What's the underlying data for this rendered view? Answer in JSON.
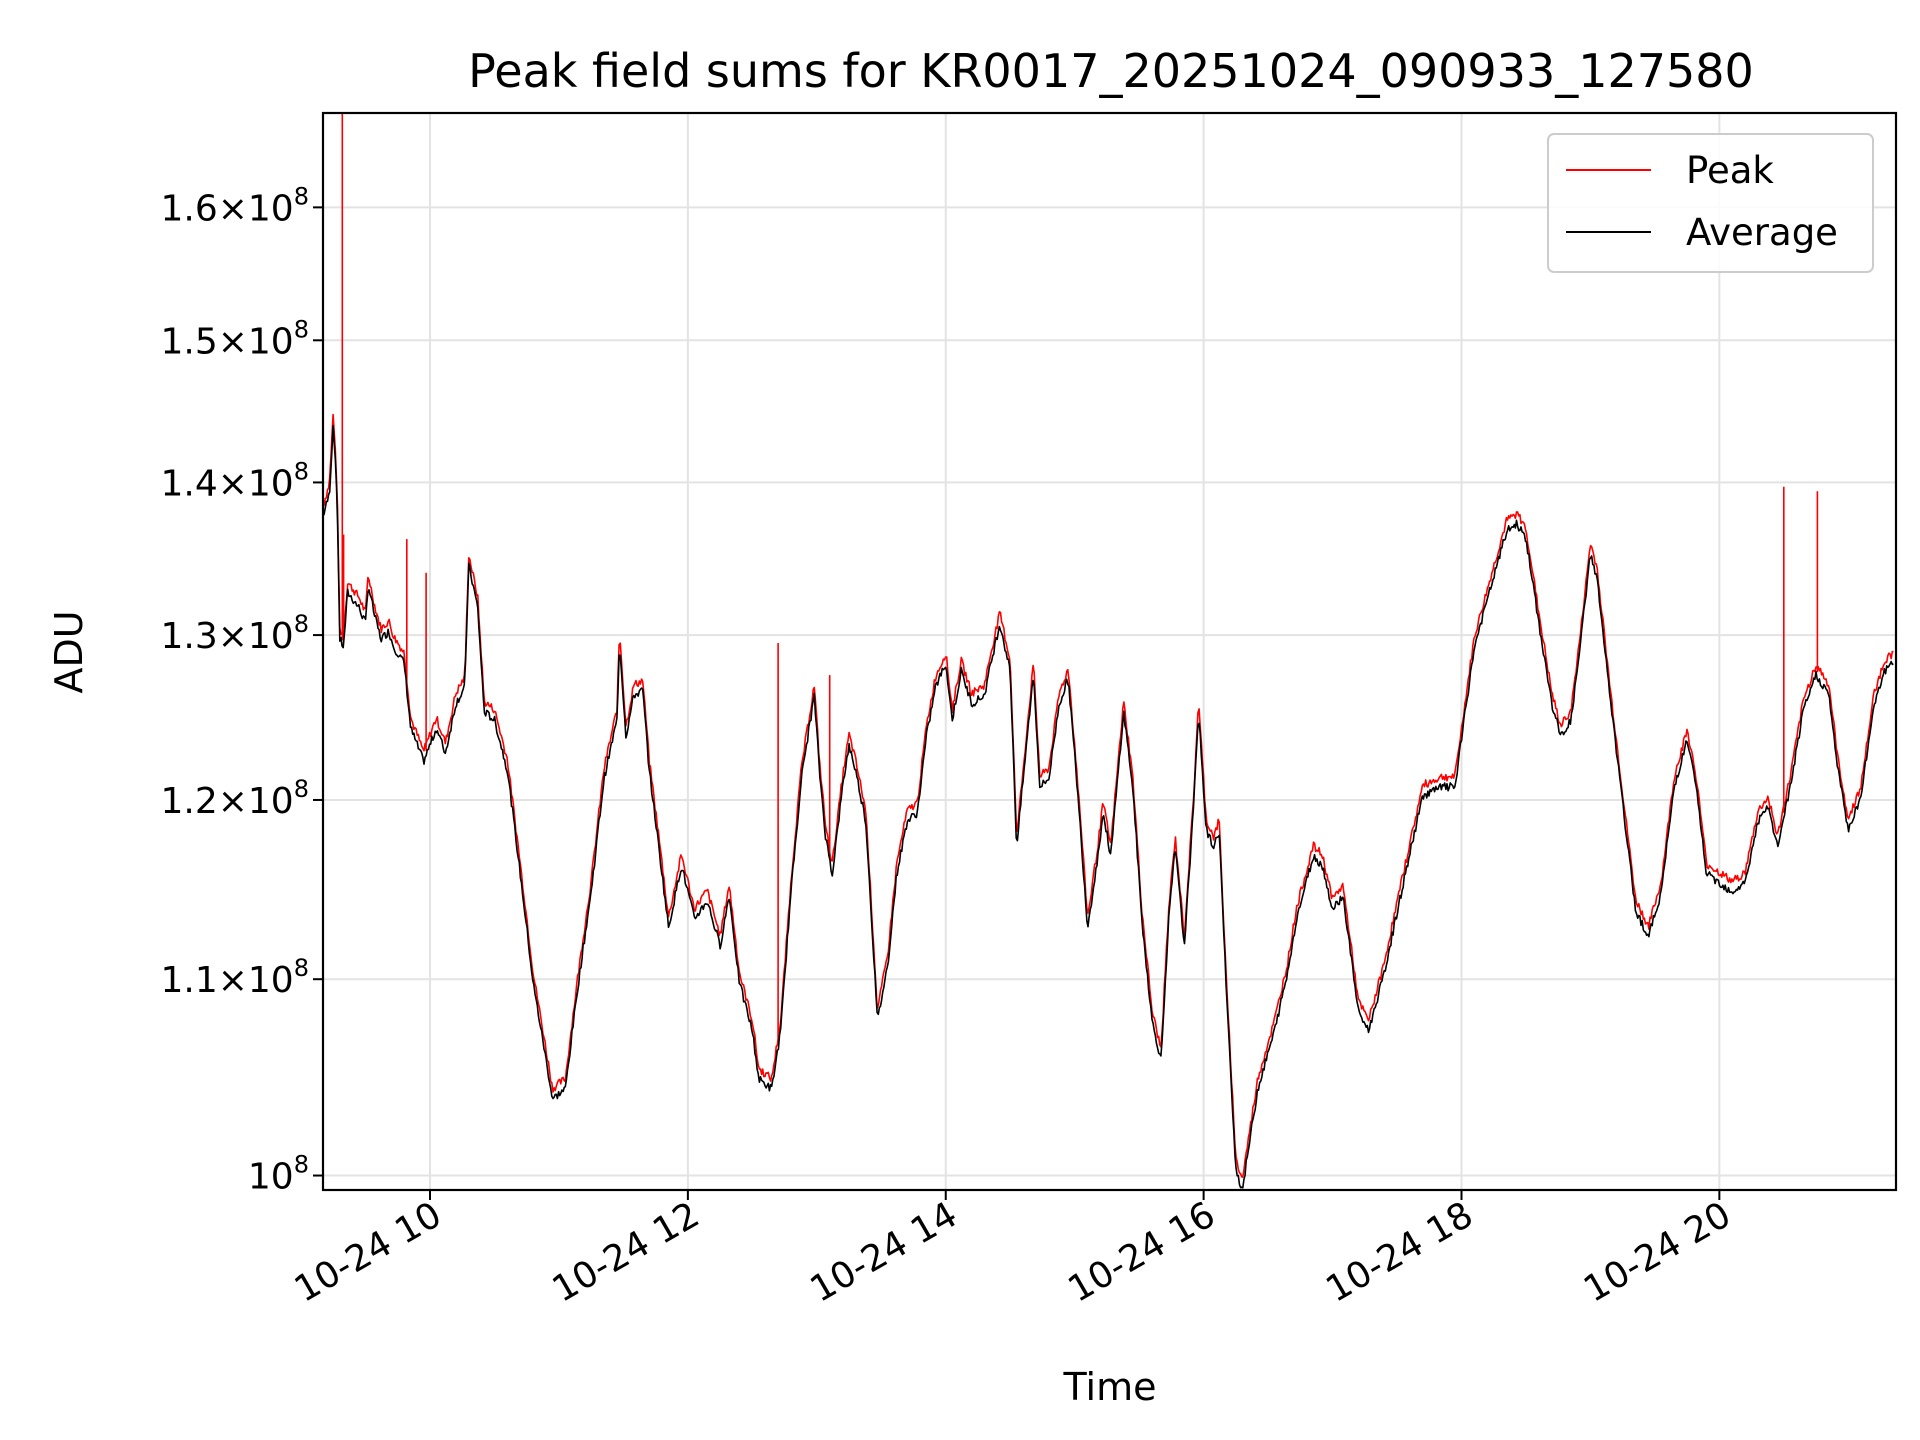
{
  "chart_data": {
    "type": "line",
    "title": "Peak field sums for KR0017_20251024_090933_127580",
    "xlabel": "Time",
    "ylabel": "ADU",
    "yscale": "log",
    "grid": true,
    "legend_position": "top-right",
    "xlim": [
      9.17,
      21.37
    ],
    "ylim": [
      99300000,
      167500000
    ],
    "x_ticks": [
      {
        "value": 10,
        "label": "10-24 10"
      },
      {
        "value": 12,
        "label": "10-24 12"
      },
      {
        "value": 14,
        "label": "10-24 14"
      },
      {
        "value": 16,
        "label": "10-24 16"
      },
      {
        "value": 18,
        "label": "10-24 18"
      },
      {
        "value": 20,
        "label": "10-24 20"
      }
    ],
    "y_ticks": [
      {
        "value": 100000000,
        "mantissa": "",
        "exponent": "8"
      },
      {
        "value": 110000000,
        "mantissa": "1.1",
        "exponent": "8"
      },
      {
        "value": 120000000,
        "mantissa": "1.2",
        "exponent": "8"
      },
      {
        "value": 130000000,
        "mantissa": "1.3",
        "exponent": "8"
      },
      {
        "value": 140000000,
        "mantissa": "1.4",
        "exponent": "8"
      },
      {
        "value": 150000000,
        "mantissa": "1.5",
        "exponent": "8"
      },
      {
        "value": 160000000,
        "mantissa": "1.6",
        "exponent": "8"
      }
    ],
    "x_unit_note": "hours of day on 2025-10-24",
    "series": [
      {
        "name": "Peak",
        "color": "#ff0000",
        "spikes": [
          [
            9.32,
            167500000
          ],
          [
            9.33,
            136500000
          ],
          [
            9.82,
            136200000
          ],
          [
            9.97,
            134000000
          ],
          [
            12.7,
            129500000
          ],
          [
            13.1,
            127500000
          ],
          [
            20.5,
            139700000
          ],
          [
            20.76,
            139400000
          ]
        ],
        "points": [
          [
            9.17,
            138000000
          ],
          [
            9.22,
            139500000
          ],
          [
            9.25,
            144500000
          ],
          [
            9.28,
            139000000
          ],
          [
            9.3,
            130000000
          ],
          [
            9.33,
            129500000
          ],
          [
            9.36,
            133000000
          ],
          [
            9.45,
            132000000
          ],
          [
            9.5,
            131000000
          ],
          [
            9.52,
            133500000
          ],
          [
            9.57,
            131500000
          ],
          [
            9.62,
            130000000
          ],
          [
            9.68,
            130500000
          ],
          [
            9.72,
            129500000
          ],
          [
            9.8,
            128500000
          ],
          [
            9.85,
            124500000
          ],
          [
            9.95,
            122500000
          ],
          [
            10.05,
            124500000
          ],
          [
            10.12,
            123000000
          ],
          [
            10.2,
            126000000
          ],
          [
            10.27,
            127000000
          ],
          [
            10.3,
            134800000
          ],
          [
            10.37,
            132000000
          ],
          [
            10.42,
            125500000
          ],
          [
            10.5,
            125000000
          ],
          [
            10.6,
            122000000
          ],
          [
            10.7,
            116000000
          ],
          [
            10.8,
            110000000
          ],
          [
            10.95,
            104000000
          ],
          [
            11.05,
            104500000
          ],
          [
            11.15,
            110000000
          ],
          [
            11.25,
            115000000
          ],
          [
            11.35,
            121500000
          ],
          [
            11.45,
            125000000
          ],
          [
            11.47,
            129800000
          ],
          [
            11.52,
            124000000
          ],
          [
            11.58,
            126500000
          ],
          [
            11.65,
            126800000
          ],
          [
            11.7,
            122000000
          ],
          [
            11.8,
            116000000
          ],
          [
            11.85,
            113000000
          ],
          [
            11.95,
            116500000
          ],
          [
            12.05,
            113500000
          ],
          [
            12.15,
            114500000
          ],
          [
            12.25,
            112000000
          ],
          [
            12.32,
            114800000
          ],
          [
            12.4,
            110000000
          ],
          [
            12.5,
            107500000
          ],
          [
            12.55,
            105000000
          ],
          [
            12.65,
            104500000
          ],
          [
            12.72,
            107500000
          ],
          [
            12.8,
            115000000
          ],
          [
            12.88,
            121500000
          ],
          [
            12.98,
            126500000
          ],
          [
            13.02,
            122000000
          ],
          [
            13.07,
            118000000
          ],
          [
            13.12,
            116000000
          ],
          [
            13.2,
            121000000
          ],
          [
            13.25,
            123500000
          ],
          [
            13.3,
            122000000
          ],
          [
            13.38,
            119000000
          ],
          [
            13.47,
            108000000
          ],
          [
            13.55,
            111000000
          ],
          [
            13.62,
            116000000
          ],
          [
            13.7,
            119000000
          ],
          [
            13.78,
            119500000
          ],
          [
            13.85,
            124000000
          ],
          [
            13.92,
            127000000
          ],
          [
            14.0,
            128500000
          ],
          [
            14.05,
            125000000
          ],
          [
            14.12,
            128000000
          ],
          [
            14.2,
            126000000
          ],
          [
            14.3,
            126500000
          ],
          [
            14.35,
            128500000
          ],
          [
            14.42,
            131000000
          ],
          [
            14.5,
            128000000
          ],
          [
            14.55,
            117500000
          ],
          [
            14.62,
            123000000
          ],
          [
            14.68,
            127800000
          ],
          [
            14.73,
            121000000
          ],
          [
            14.8,
            121500000
          ],
          [
            14.88,
            126000000
          ],
          [
            14.95,
            127500000
          ],
          [
            15.02,
            121000000
          ],
          [
            15.1,
            113000000
          ],
          [
            15.18,
            117000000
          ],
          [
            15.22,
            119500000
          ],
          [
            15.28,
            117000000
          ],
          [
            15.38,
            125500000
          ],
          [
            15.45,
            121000000
          ],
          [
            15.52,
            113500000
          ],
          [
            15.6,
            108000000
          ],
          [
            15.67,
            106000000
          ],
          [
            15.73,
            113500000
          ],
          [
            15.78,
            117500000
          ],
          [
            15.85,
            112000000
          ],
          [
            15.92,
            119500000
          ],
          [
            15.96,
            125500000
          ],
          [
            16.02,
            118500000
          ],
          [
            16.08,
            117500000
          ],
          [
            16.12,
            118500000
          ],
          [
            16.18,
            109000000
          ],
          [
            16.25,
            100500000
          ],
          [
            16.3,
            99500000
          ],
          [
            16.42,
            104500000
          ],
          [
            16.55,
            107500000
          ],
          [
            16.65,
            110500000
          ],
          [
            16.72,
            113500000
          ],
          [
            16.85,
            117000000
          ],
          [
            16.92,
            116500000
          ],
          [
            17.0,
            114000000
          ],
          [
            17.08,
            114800000
          ],
          [
            17.2,
            108500000
          ],
          [
            17.28,
            107500000
          ],
          [
            17.4,
            110500000
          ],
          [
            17.55,
            115500000
          ],
          [
            17.7,
            120500000
          ],
          [
            17.85,
            121000000
          ],
          [
            17.95,
            121000000
          ],
          [
            18.1,
            129500000
          ],
          [
            18.25,
            134000000
          ],
          [
            18.35,
            137000000
          ],
          [
            18.43,
            137500000
          ],
          [
            18.5,
            136500000
          ],
          [
            18.6,
            131000000
          ],
          [
            18.7,
            126000000
          ],
          [
            18.77,
            124000000
          ],
          [
            18.85,
            125000000
          ],
          [
            18.92,
            129500000
          ],
          [
            19.0,
            135500000
          ],
          [
            19.05,
            134000000
          ],
          [
            19.15,
            126500000
          ],
          [
            19.25,
            120000000
          ],
          [
            19.35,
            114000000
          ],
          [
            19.45,
            112500000
          ],
          [
            19.55,
            115000000
          ],
          [
            19.65,
            121000000
          ],
          [
            19.75,
            123800000
          ],
          [
            19.82,
            121000000
          ],
          [
            19.9,
            116000000
          ],
          [
            20.0,
            115500000
          ],
          [
            20.1,
            115000000
          ],
          [
            20.2,
            115500000
          ],
          [
            20.3,
            119000000
          ],
          [
            20.38,
            119800000
          ],
          [
            20.45,
            117500000
          ],
          [
            20.55,
            121000000
          ],
          [
            20.65,
            125500000
          ],
          [
            20.75,
            127800000
          ],
          [
            20.85,
            126500000
          ],
          [
            20.92,
            122000000
          ],
          [
            21.0,
            118500000
          ],
          [
            21.1,
            120500000
          ],
          [
            21.2,
            126000000
          ],
          [
            21.28,
            128000000
          ],
          [
            21.35,
            128500000
          ]
        ]
      },
      {
        "name": "Average",
        "color": "#000000"
      }
    ]
  }
}
